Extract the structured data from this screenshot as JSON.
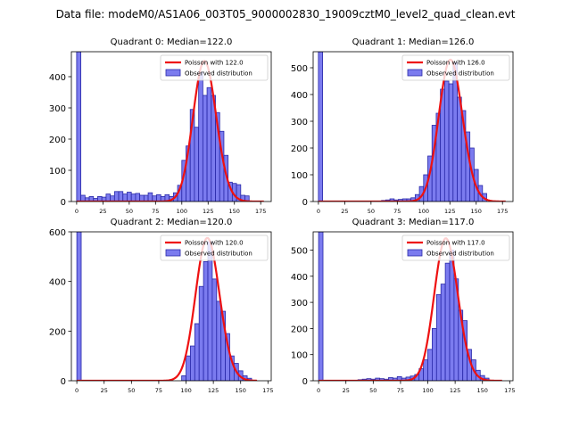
{
  "figure": {
    "suptitle": "Data file: modeM0/AS1A06_003T05_9000002830_19009cztM0_level2_quad_clean.evt"
  },
  "colors": {
    "bar_fill": "#7b7bef",
    "bar_edge": "#2828a8",
    "poisson_line": "#ee1111",
    "axis": "#000000"
  },
  "chart_data": [
    {
      "type": "bar",
      "title": "Quadrant 0: Median=122.0",
      "xlim": [
        -5,
        185
      ],
      "ylim": [
        0,
        480
      ],
      "xticks": [
        0,
        25,
        50,
        75,
        100,
        125,
        150,
        175
      ],
      "yticks": [
        0,
        100,
        200,
        300,
        400
      ],
      "legend": {
        "position": "top-right",
        "line_label": "Poisson with 122.0",
        "bar_label": "Observed distribution"
      },
      "bin_width": 4,
      "hist": {
        "bin_starts": [
          0,
          4,
          8,
          12,
          16,
          20,
          24,
          28,
          32,
          36,
          40,
          44,
          48,
          52,
          56,
          60,
          64,
          68,
          72,
          76,
          80,
          84,
          88,
          92,
          96,
          100,
          104,
          108,
          112,
          116,
          120,
          124,
          128,
          132,
          136,
          140,
          144,
          148,
          152,
          156,
          160
        ],
        "values": [
          480,
          20,
          12,
          16,
          10,
          16,
          14,
          24,
          18,
          32,
          32,
          24,
          30,
          24,
          26,
          20,
          20,
          28,
          18,
          22,
          16,
          22,
          16,
          28,
          52,
          132,
          178,
          295,
          238,
          415,
          340,
          365,
          340,
          285,
          225,
          148,
          62,
          58,
          54,
          20,
          18
        ]
      },
      "poisson": {
        "mean": 122.0,
        "peak": 450,
        "x_range": [
          0,
          178
        ]
      }
    },
    {
      "type": "bar",
      "title": "Quadrant 1: Median=126.0",
      "xlim": [
        -5,
        185
      ],
      "ylim": [
        0,
        560
      ],
      "xticks": [
        0,
        25,
        50,
        75,
        100,
        125,
        150,
        175
      ],
      "yticks": [
        0,
        100,
        200,
        300,
        400,
        500
      ],
      "legend": {
        "position": "top-right",
        "line_label": "Poisson with 126.0",
        "bar_label": "Observed distribution"
      },
      "bin_width": 4,
      "hist": {
        "bin_starts": [
          0,
          60,
          64,
          68,
          72,
          76,
          80,
          84,
          88,
          92,
          96,
          100,
          104,
          108,
          112,
          116,
          120,
          124,
          128,
          132,
          136,
          140,
          144,
          148,
          152,
          156
        ],
        "values": [
          560,
          4,
          6,
          10,
          6,
          8,
          10,
          10,
          14,
          26,
          56,
          100,
          170,
          285,
          330,
          420,
          450,
          440,
          520,
          390,
          340,
          260,
          200,
          120,
          60,
          30
        ]
      },
      "poisson": {
        "mean": 126.0,
        "peak": 530,
        "x_range": [
          0,
          178
        ]
      }
    },
    {
      "type": "bar",
      "title": "Quadrant 2: Median=120.0",
      "xlim": [
        -5,
        178
      ],
      "ylim": [
        0,
        600
      ],
      "xticks": [
        0,
        25,
        50,
        75,
        100,
        125,
        150,
        175
      ],
      "yticks": [
        0,
        200,
        400,
        600
      ],
      "legend": {
        "position": "top-right",
        "line_label": "Poisson with 120.0",
        "bar_label": "Observed distribution"
      },
      "bin_width": 4,
      "hist": {
        "bin_starts": [
          0,
          96,
          100,
          104,
          108,
          112,
          116,
          120,
          124,
          128,
          132,
          136,
          140,
          144,
          148,
          152,
          156
        ],
        "values": [
          600,
          20,
          100,
          140,
          230,
          380,
          480,
          560,
          410,
          320,
          280,
          190,
          100,
          70,
          40,
          20,
          10
        ]
      },
      "poisson": {
        "mean": 120.0,
        "peak": 575,
        "x_range": [
          0,
          165
        ]
      }
    },
    {
      "type": "bar",
      "title": "Quadrant 3: Median=117.0",
      "xlim": [
        -5,
        178
      ],
      "ylim": [
        0,
        570
      ],
      "xticks": [
        0,
        25,
        50,
        75,
        100,
        125,
        150,
        175
      ],
      "yticks": [
        0,
        100,
        200,
        300,
        400,
        500
      ],
      "legend": {
        "position": "top-right",
        "line_label": "Poisson with 117.0",
        "bar_label": "Observed distribution"
      },
      "bin_width": 4,
      "hist": {
        "bin_starts": [
          0,
          36,
          40,
          44,
          48,
          52,
          56,
          60,
          64,
          68,
          72,
          76,
          80,
          84,
          88,
          92,
          96,
          100,
          104,
          108,
          112,
          116,
          120,
          124,
          128,
          132,
          136,
          140,
          144,
          148,
          152
        ],
        "values": [
          570,
          4,
          6,
          8,
          6,
          10,
          8,
          6,
          12,
          10,
          16,
          10,
          14,
          18,
          24,
          46,
          80,
          120,
          200,
          330,
          370,
          450,
          500,
          390,
          270,
          230,
          120,
          80,
          40,
          20,
          10
        ]
      },
      "poisson": {
        "mean": 117.0,
        "peak": 545,
        "x_range": [
          0,
          168
        ]
      }
    }
  ]
}
